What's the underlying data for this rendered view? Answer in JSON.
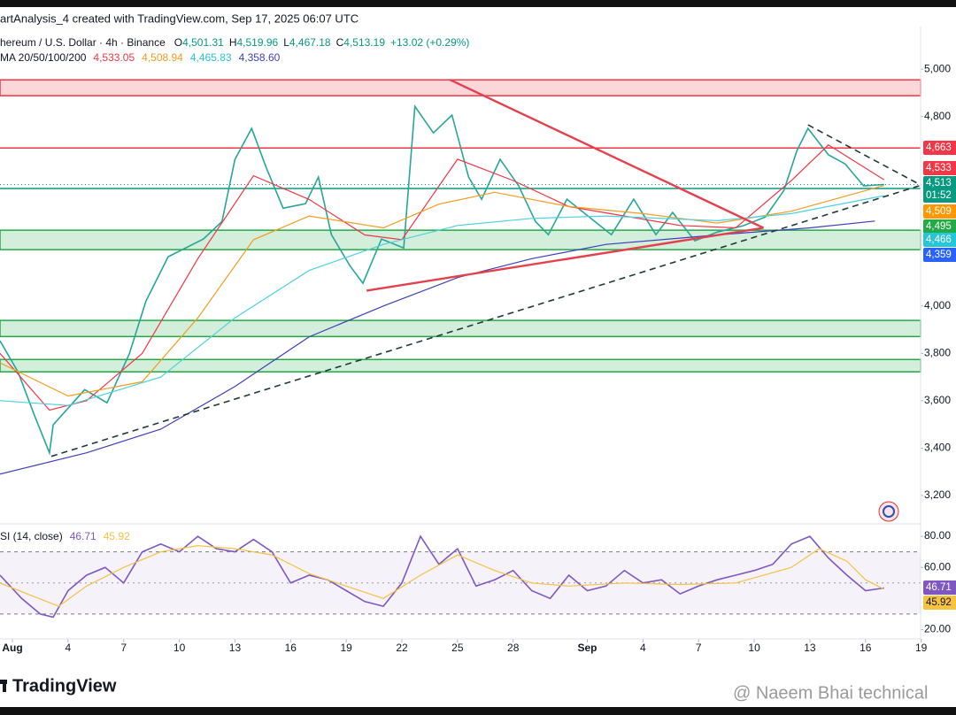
{
  "header": {
    "attribution": "artAnalysis_4 created with TradingView.com, Sep 17, 2025 06:07 UTC",
    "symbol": "hereum / U.S. Dollar · 4h · Binance",
    "ohlc": [
      {
        "label": "O",
        "value": "4,501.31"
      },
      {
        "label": "H",
        "value": "4,519.96"
      },
      {
        "label": "L",
        "value": "4,467.18"
      },
      {
        "label": "C",
        "value": "4,513.19"
      }
    ],
    "change": "+13.02 (+0.29%)",
    "ma_label": "MA 20/50/100/200",
    "ma_values": [
      {
        "text": "4,533.05",
        "color": "#f23645"
      },
      {
        "text": "4,508.94",
        "color": "#f59b1d"
      },
      {
        "text": "4,465.83",
        "color": "#26c6da"
      },
      {
        "text": "4,358.60",
        "color": "#3f3fb8"
      }
    ]
  },
  "chart_data": [
    {
      "type": "line",
      "xlim": [
        -0.67,
        48.97
      ],
      "ylim": [
        3080,
        5180
      ],
      "yticks": [
        {
          "value": 5000,
          "label": "5,000"
        },
        {
          "value": 4800,
          "label": "4,800"
        },
        {
          "value": 4000,
          "label": "4,000"
        },
        {
          "value": 3800,
          "label": "3,800"
        },
        {
          "value": 3600,
          "label": "3,600"
        },
        {
          "value": 3400,
          "label": "3,400"
        },
        {
          "value": 3200,
          "label": "3,200"
        }
      ],
      "grid": false,
      "series": [
        {
          "color": "#26a69a",
          "x": [
            -0.67,
            0.3,
            1.2,
            2.0,
            2.2,
            3.9,
            5.1,
            6.3,
            7.2,
            8.4,
            10.3,
            11.3,
            12.0,
            12.9,
            13.7,
            14.6,
            15.8,
            16.5,
            17.2,
            18.2,
            18.9,
            19.9,
            21.1,
            21.7,
            22.7,
            23.7,
            24.6,
            25.3,
            26.3,
            27.3,
            28.2,
            28.9,
            29.9,
            31.1,
            32.3,
            33.5,
            34.7,
            35.6,
            36.8,
            38.0,
            39.4,
            40.6,
            41.6,
            42.3,
            42.9,
            44.0,
            44.9,
            45.9,
            47.0
          ],
          "values": [
            3853,
            3722,
            3535,
            3380,
            3498,
            3647,
            3591,
            3797,
            4021,
            4208,
            4283,
            4357,
            4619,
            4750,
            4581,
            4413,
            4432,
            4544,
            4301,
            4170,
            4096,
            4283,
            4245,
            4843,
            4731,
            4806,
            4544,
            4451,
            4619,
            4507,
            4357,
            4301,
            4451,
            4376,
            4301,
            4451,
            4301,
            4395,
            4275,
            4312,
            4339,
            4376,
            4488,
            4656,
            4750,
            4638,
            4600,
            4507,
            4513.19
          ]
        },
        {
          "color": "#f23645",
          "x": [
            -0.67,
            2,
            4,
            7,
            10,
            13,
            16,
            19,
            21,
            24,
            27,
            30,
            33,
            36,
            39,
            42,
            44,
            47
          ],
          "values": [
            3800,
            3560,
            3600,
            3800,
            4200,
            4550,
            4450,
            4300,
            4280,
            4620,
            4530,
            4420,
            4380,
            4340,
            4330,
            4530,
            4680,
            4533.05
          ]
        },
        {
          "color": "#f59b1d",
          "x": [
            -0.67,
            3,
            7,
            10,
            13,
            16,
            20,
            23,
            26,
            30,
            34,
            38,
            42,
            47
          ],
          "values": [
            3760,
            3620,
            3680,
            3950,
            4280,
            4380,
            4330,
            4430,
            4480,
            4420,
            4390,
            4350,
            4400,
            4508.94
          ]
        },
        {
          "color": "#4dd0e1",
          "x": [
            -0.67,
            3,
            8,
            12,
            16,
            20,
            24,
            28,
            32,
            38,
            42,
            47
          ],
          "values": [
            3600,
            3580,
            3700,
            3950,
            4150,
            4260,
            4340,
            4370,
            4380,
            4360,
            4390,
            4465.83
          ]
        },
        {
          "color": "#3f3fb8",
          "x": [
            -0.67,
            4,
            8,
            12,
            16,
            20,
            24,
            28,
            32,
            38,
            43,
            46.5
          ],
          "values": [
            3290,
            3380,
            3480,
            3660,
            3870,
            4000,
            4120,
            4200,
            4260,
            4300,
            4330,
            4358.6
          ]
        }
      ],
      "zones": [
        {
          "range": [
            4888,
            4955
          ],
          "color": "#f23645"
        },
        {
          "range": [
            4238,
            4320
          ],
          "color": "#22ab45"
        },
        {
          "range": [
            3871,
            3939
          ],
          "color": "#22ab45"
        },
        {
          "range": [
            3722,
            3774
          ],
          "color": "#22ab45"
        }
      ],
      "levels": [
        {
          "value": 4667,
          "color": "#f23645"
        },
        {
          "value": 4496,
          "color": "#089981"
        }
      ],
      "trendlines": [
        {
          "x": [
            19.1,
            40.5
          ],
          "values": [
            4065,
            4330
          ],
          "color": "#e5404b",
          "dashed": false
        },
        {
          "x": [
            23.6,
            40.5
          ],
          "values": [
            4955,
            4330
          ],
          "color": "#e5404b",
          "dashed": false
        },
        {
          "x": [
            2.1,
            49
          ],
          "values": [
            3365,
            4510
          ],
          "color": "#1e3a3a",
          "dashed": true
        },
        {
          "x": [
            42.9,
            49
          ],
          "values": [
            4765,
            4510
          ],
          "color": "#1e3a3a",
          "dashed": true
        }
      ],
      "price_tags": [
        {
          "label": "4,663",
          "color": "#f23645"
        },
        {
          "label": "4,533",
          "color": "#f23645"
        },
        {
          "label": "4,513",
          "color": "#089981"
        },
        {
          "label": "01:52",
          "color": "#089981"
        },
        {
          "label": "4,509",
          "color": "#ff9800"
        },
        {
          "label": "4,495",
          "color": "#22ab45"
        },
        {
          "label": "4,466",
          "color": "#26c6da"
        },
        {
          "label": "4,359",
          "color": "#2962ff"
        }
      ]
    },
    {
      "type": "line",
      "title": "SI (14, close)",
      "xlim": [
        -0.67,
        48.97
      ],
      "ylim": [
        14,
        88
      ],
      "yticks": [
        {
          "value": 80,
          "label": "80.00"
        },
        {
          "value": 60,
          "label": "60.00"
        },
        {
          "value": 20,
          "label": "20.00"
        }
      ],
      "band": [
        30,
        70
      ],
      "midline": 50,
      "xticks": [
        {
          "value": 0,
          "label": "Aug"
        },
        {
          "value": 3,
          "label": "4"
        },
        {
          "value": 6,
          "label": "7"
        },
        {
          "value": 9,
          "label": "10"
        },
        {
          "value": 12,
          "label": "13"
        },
        {
          "value": 15,
          "label": "16"
        },
        {
          "value": 18,
          "label": "19"
        },
        {
          "value": 21,
          "label": "22"
        },
        {
          "value": 24,
          "label": "25"
        },
        {
          "value": 27,
          "label": "28"
        },
        {
          "value": 31,
          "label": "Sep"
        },
        {
          "value": 34,
          "label": "4"
        },
        {
          "value": 37,
          "label": "7"
        },
        {
          "value": 40,
          "label": "10"
        },
        {
          "value": 43,
          "label": "13"
        },
        {
          "value": 46,
          "label": "16"
        },
        {
          "value": 49,
          "label": "19"
        }
      ],
      "series": [
        {
          "color": "#7e57c2",
          "x": [
            -0.67,
            0.5,
            1.5,
            2.2,
            3,
            4,
            5,
            6,
            7,
            8,
            9,
            10,
            11,
            12,
            13,
            14,
            15,
            16,
            17,
            18,
            19,
            20,
            21,
            22,
            23,
            24,
            25,
            26,
            27,
            28,
            29,
            30,
            31,
            32,
            33,
            34,
            35,
            36,
            37,
            38,
            39,
            40,
            41,
            42,
            43,
            44,
            45,
            46,
            47
          ],
          "values": [
            55,
            40,
            30,
            28,
            45,
            55,
            60,
            50,
            70,
            75,
            70,
            80,
            72,
            70,
            78,
            70,
            50,
            55,
            52,
            45,
            38,
            35,
            50,
            80,
            62,
            72,
            48,
            52,
            58,
            45,
            40,
            55,
            45,
            48,
            58,
            50,
            52,
            43,
            48,
            52,
            55,
            58,
            62,
            75,
            80,
            66,
            55,
            45,
            46.71
          ]
        },
        {
          "color": "#f5c242",
          "x": [
            -0.67,
            1,
            2.5,
            4,
            6,
            8,
            10,
            12,
            14,
            16,
            18,
            20,
            22,
            24,
            26,
            28,
            30,
            33,
            36,
            39,
            42,
            43.5,
            45,
            46,
            47
          ],
          "values": [
            50,
            42,
            35,
            48,
            60,
            70,
            74,
            72,
            68,
            56,
            48,
            40,
            55,
            68,
            58,
            50,
            48,
            50,
            49,
            50,
            60,
            72,
            64,
            52,
            45.92
          ]
        }
      ]
    }
  ],
  "footer": {
    "logo": "TradingView",
    "watermark": "@ Naeem Bhai technical"
  }
}
